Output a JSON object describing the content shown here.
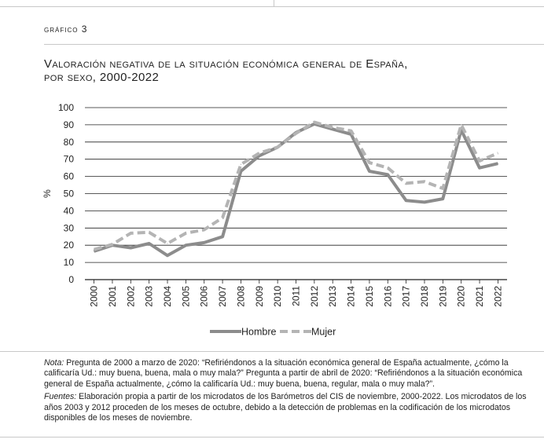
{
  "figure": {
    "label": "Gráfico 3",
    "title_line1": "Valoración negativa de la situación económica general de España,",
    "title_line2": "por sexo, 2000-2022"
  },
  "notes": {
    "nota_label": "Nota:",
    "nota_text": " Pregunta de 2000 a marzo de 2020: “Refiriéndonos a la situación económica general de España actualmente, ¿cómo la calificaría Ud.: muy buena, buena, mala o muy mala?” Pregunta a partir de abril de 2020: “Refiriéndonos a la situación económica general de España actualmente, ¿cómo la calificaría Ud.: muy buena, buena, regular, mala o muy mala?”.",
    "fuentes_label": "Fuentes:",
    "fuentes_text": " Elaboración propia a partir de los microdatos de los Barómetros del CIS de noviembre, 2000-2022. Los microdatos de los años 2003 y 2012 proceden de los meses de octubre, debido a la detección de problemas en la codificación de los microdatos disponibles de los meses de noviembre."
  },
  "chart_data": {
    "type": "line",
    "title": "",
    "xlabel": "",
    "ylabel": "%",
    "ylim": [
      0,
      100
    ],
    "yticks": [
      0,
      10,
      20,
      30,
      40,
      50,
      60,
      70,
      80,
      90,
      100
    ],
    "grid": true,
    "legend_position": "bottom",
    "x": [
      "2000",
      "2001",
      "2002",
      "2003",
      "2004",
      "2005",
      "2006",
      "2007",
      "2008",
      "2009",
      "2010",
      "2011",
      "2012",
      "2013",
      "2014",
      "2015",
      "2016",
      "2017",
      "2018",
      "2019",
      "2020",
      "2021",
      "2022"
    ],
    "series": [
      {
        "name": "Hombre",
        "style": "solid",
        "color": "#8c8c8c",
        "values": [
          16.5,
          20,
          18.5,
          21,
          14,
          20,
          21.5,
          25,
          63,
          72,
          77,
          85.5,
          90.5,
          87.5,
          84.5,
          63,
          61,
          46,
          45,
          47,
          87,
          65,
          67.5
        ]
      },
      {
        "name": "Mujer",
        "style": "dashed",
        "color": "#b4b4b4",
        "values": [
          17.5,
          20.5,
          27,
          27.5,
          21,
          27,
          29,
          36,
          67,
          73.5,
          77,
          85,
          91.5,
          88.5,
          86.5,
          68,
          65,
          56,
          57,
          53,
          90,
          69,
          73.5
        ]
      }
    ]
  }
}
